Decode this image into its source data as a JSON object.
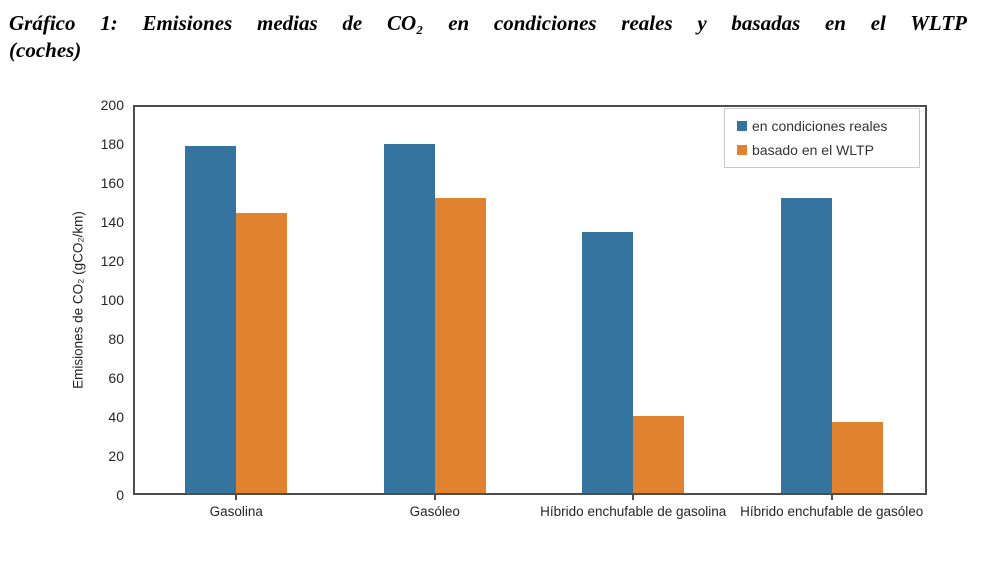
{
  "header": {
    "line1": "Gráfico 1: Emisiones medias de CO₂ en condiciones reales y basadas en el WLTP",
    "line2": "(coches)"
  },
  "chart_data": {
    "type": "bar",
    "title": "Gráfico 1: Emisiones medias de CO₂ en condiciones reales y basadas en el WLTP (coches)",
    "categories": [
      "Gasolina",
      "Gasóleo",
      "Híbrido enchufable de gasolina",
      "Híbrido enchufable de gasóleo"
    ],
    "series": [
      {
        "name": "en condiciones reales",
        "color": "#35749E",
        "values": [
          180,
          181,
          135,
          153
        ]
      },
      {
        "name": "basado en el WLTP",
        "color": "#E0822F",
        "values": [
          145,
          153,
          40,
          37
        ]
      }
    ],
    "xlabel": "",
    "ylabel": "Emisiones de CO₂ (gCO₂/km)",
    "ylim": [
      0,
      200
    ],
    "ytick_step": 20,
    "grid": false,
    "legend_position": "top-right",
    "colors": {
      "axis": "#4d4d4d",
      "tick_text": "#262626",
      "legend_border": "#c9c9c9"
    }
  }
}
